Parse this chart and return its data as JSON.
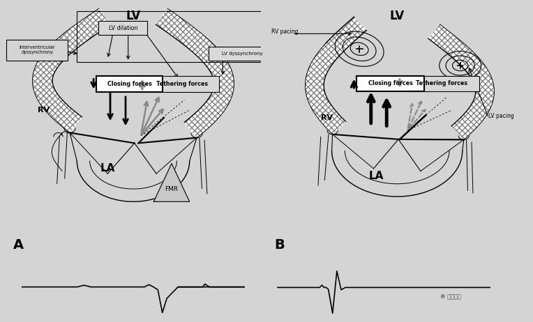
{
  "bg_color": "#d4d4d4",
  "LV_label": "LV",
  "LA_label": "LA",
  "RV_label": "RV",
  "FMR_label": "FMR",
  "tethering_label": "Tethering forces",
  "closing_label": "Closing forces",
  "LV_dilation_label": "LV dilation",
  "LV_dyssynchrony_label": "LV dyssynchrony",
  "interventricular_label": "Interventricular\ndyssynchrony",
  "RV_pacing_label": "RV pacing",
  "LV_pacing_label": "LV pacing",
  "title_A": "A",
  "title_B": "B"
}
